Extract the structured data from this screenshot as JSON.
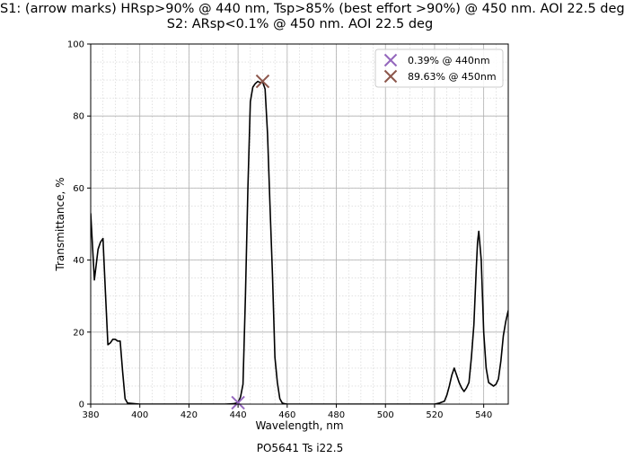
{
  "title_line1": "S1: (arrow marks) HRsp>90% @ 440 nm, Tsp>85% (best effort >90%) @ 450 nm. AOI 22.5 deg",
  "title_line2": "S2: ARsp<0.1% @ 450 nm. AOI 22.5 deg",
  "caption": "PO5641 Ts i22.5",
  "chart_data": {
    "type": "line",
    "title": "S1: (arrow marks) HRsp>90% @ 440 nm, Tsp>85% (best effort >90%) @ 450 nm. AOI 22.5 deg / S2: ARsp<0.1% @ 450 nm. AOI 22.5 deg",
    "xlabel": "Wavelength, nm",
    "ylabel": "Transmittance, %",
    "xlim": [
      380,
      550
    ],
    "ylim": [
      0,
      100
    ],
    "x_major_ticks": [
      380,
      400,
      420,
      440,
      460,
      480,
      500,
      520,
      540
    ],
    "y_major_ticks": [
      0,
      20,
      40,
      60,
      80,
      100
    ],
    "x_tick_labels": [
      "380",
      "400",
      "420",
      "440",
      "460",
      "480",
      "500",
      "520",
      "540"
    ],
    "y_tick_labels": [
      "0",
      "20",
      "40",
      "60",
      "80",
      "100"
    ],
    "x_minor_step": 5,
    "y_minor_step": 5,
    "grid": true,
    "legend_position": "top-right",
    "line_color": "#000000",
    "series": [
      {
        "x": [
          380,
          381.5,
          383,
          384,
          385,
          386,
          387,
          388,
          389,
          390,
          391,
          392,
          393,
          394,
          395,
          400,
          410,
          420,
          430,
          435,
          438,
          440,
          441,
          442,
          443,
          444,
          445,
          446,
          447,
          448,
          449,
          450,
          451,
          452,
          453,
          454,
          455,
          456,
          457,
          458,
          459,
          460,
          462,
          470,
          480,
          490,
          500,
          510,
          520,
          522,
          524,
          525,
          526,
          527,
          528,
          529,
          530,
          531,
          532,
          533,
          534,
          535,
          536,
          537,
          537.5,
          538,
          539,
          540,
          541,
          542,
          543,
          544,
          545,
          546,
          547,
          548,
          549,
          550
        ],
        "y": [
          53,
          34.5,
          43,
          45,
          46,
          31,
          16.5,
          17,
          18,
          18,
          17.5,
          17.5,
          9,
          1.5,
          0.3,
          0,
          0,
          0,
          0,
          0,
          0.1,
          0.4,
          2,
          5.5,
          30,
          60,
          84,
          88,
          89,
          89.6,
          89.3,
          89.5,
          87.5,
          75,
          55,
          36,
          13,
          6,
          1.5,
          0.3,
          0.1,
          0,
          0,
          0,
          0,
          0,
          0,
          0,
          0,
          0.3,
          0.8,
          2.5,
          5,
          8,
          10,
          8,
          6,
          4.5,
          3.5,
          4.5,
          6,
          13,
          22,
          38,
          45,
          48,
          40,
          20,
          10,
          6,
          5.5,
          5,
          5.5,
          7,
          12,
          19,
          23,
          26
        ]
      }
    ],
    "markers": [
      {
        "label": "0.39% @ 440nm",
        "x": 440,
        "y": 0.39,
        "color": "#9467bd"
      },
      {
        "label": "89.63% @ 450nm",
        "x": 450,
        "y": 89.63,
        "color": "#8c564b"
      }
    ]
  }
}
